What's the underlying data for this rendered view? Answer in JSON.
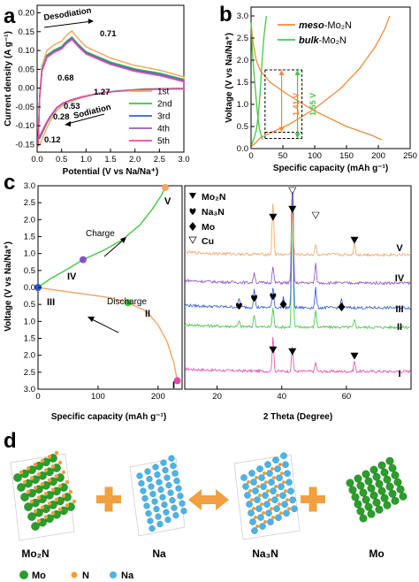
{
  "colors": {
    "s1": "#f4a460",
    "s2": "#3cc43c",
    "s3": "#3a5fcd",
    "s4": "#9b5fc0",
    "s5": "#e64fa8",
    "meso": "#f08a3c",
    "bulk": "#44c944",
    "purple": "#8a4fc8",
    "blue": "#2a56d9",
    "pink": "#e846b0",
    "mo": "#2a9d2a",
    "n": "#f39c34",
    "na": "#4db3e6",
    "arrow": "#f0a040"
  },
  "panels": {
    "a": "a",
    "b": "b",
    "c": "c",
    "d": "d"
  },
  "chart_data": [
    {
      "id": "a",
      "type": "line",
      "xlabel": "Potential (V vs Na/Na⁺)",
      "ylabel": "Current density (A g⁻¹)",
      "xlim": [
        0.0,
        3.0
      ],
      "ylim": [
        -0.17,
        0.22
      ],
      "x_ticks": [
        "0.0",
        "0.5",
        "1.0",
        "1.5",
        "2.0",
        "2.5",
        "3.0"
      ],
      "y_ticks": [
        "-0.15",
        "-0.10",
        "-0.05",
        "0.00",
        "0.05",
        "0.10",
        "0.15",
        "0.20"
      ],
      "legend": [
        "1st",
        "2nd",
        "3rd",
        "4th",
        "5th"
      ],
      "legend_position": "lower-right",
      "annotations": [
        "Desodiation",
        "0.71",
        "0.68",
        "0.53",
        "1.27",
        "0.28",
        "Sodiation",
        "0.12"
      ],
      "series": [
        {
          "name": "1st",
          "cycle": 1
        },
        {
          "name": "2nd",
          "cycle": 2
        },
        {
          "name": "3rd",
          "cycle": 3
        },
        {
          "name": "4th",
          "cycle": 4
        },
        {
          "name": "5th",
          "cycle": 5
        }
      ],
      "reduction_points": [
        [
          3.0,
          0.0
        ],
        [
          2.2,
          -0.002
        ],
        [
          1.6,
          -0.008
        ],
        [
          1.27,
          -0.014
        ],
        [
          0.9,
          -0.026
        ],
        [
          0.68,
          -0.036
        ],
        [
          0.53,
          -0.045
        ],
        [
          0.4,
          -0.06
        ],
        [
          0.28,
          -0.085
        ],
        [
          0.2,
          -0.105
        ],
        [
          0.12,
          -0.13
        ],
        [
          0.06,
          -0.15
        ],
        [
          0.02,
          -0.155
        ]
      ],
      "oxidation_points": [
        [
          0.02,
          -0.155
        ],
        [
          0.05,
          -0.02
        ],
        [
          0.1,
          0.06
        ],
        [
          0.2,
          0.1
        ],
        [
          0.35,
          0.115
        ],
        [
          0.5,
          0.125
        ],
        [
          0.6,
          0.14
        ],
        [
          0.71,
          0.152
        ],
        [
          0.85,
          0.13
        ],
        [
          1.0,
          0.11
        ],
        [
          1.5,
          0.08
        ],
        [
          2.0,
          0.06
        ],
        [
          2.5,
          0.048
        ],
        [
          3.0,
          0.03
        ]
      ],
      "series_offsets": [
        0.0,
        -0.004,
        -0.007,
        -0.009,
        -0.011
      ]
    },
    {
      "id": "b",
      "type": "line",
      "xlabel": "Specific capacity (mAh g⁻¹)",
      "ylabel": "Voltage (V vs Na/Na⁺)",
      "xlim": [
        0,
        250
      ],
      "ylim": [
        0.0,
        3.2
      ],
      "x_ticks": [
        "0",
        "50",
        "100",
        "150",
        "200",
        "250"
      ],
      "y_ticks": [
        "0.0",
        "0.5",
        "1.0",
        "1.5",
        "2.0",
        "2.5",
        "3.0"
      ],
      "legend": [
        "meso-Mo₂N",
        "bulk-Mo₂N"
      ],
      "legend_position": "top-right",
      "annotations": [
        "1.41 V",
        "1.55 V"
      ],
      "series": [
        {
          "name": "meso-Mo₂N",
          "role": "discharge",
          "points": [
            [
              0,
              2.85
            ],
            [
              3,
              2.4
            ],
            [
              8,
              2.0
            ],
            [
              15,
              1.75
            ],
            [
              30,
              1.5
            ],
            [
              60,
              1.2
            ],
            [
              100,
              0.85
            ],
            [
              150,
              0.5
            ],
            [
              190,
              0.3
            ],
            [
              205,
              0.2
            ]
          ]
        },
        {
          "name": "meso-Mo₂N",
          "role": "charge",
          "points": [
            [
              0,
              0.05
            ],
            [
              5,
              0.1
            ],
            [
              15,
              0.25
            ],
            [
              30,
              0.35
            ],
            [
              60,
              0.55
            ],
            [
              100,
              0.9
            ],
            [
              140,
              1.35
            ],
            [
              170,
              1.8
            ],
            [
              195,
              2.3
            ],
            [
              210,
              2.7
            ],
            [
              218,
              3.0
            ]
          ]
        },
        {
          "name": "bulk-Mo₂N",
          "role": "discharge",
          "points": [
            [
              0,
              2.85
            ],
            [
              2,
              2.2
            ],
            [
              4,
              1.8
            ],
            [
              7,
              1.3
            ],
            [
              10,
              0.8
            ],
            [
              13,
              0.45
            ],
            [
              16,
              0.3
            ],
            [
              18,
              0.2
            ]
          ]
        },
        {
          "name": "bulk-Mo₂N",
          "role": "charge",
          "points": [
            [
              0,
              0.05
            ],
            [
              5,
              0.25
            ],
            [
              8,
              0.4
            ],
            [
              11,
              0.7
            ],
            [
              14,
              1.2
            ],
            [
              17,
              1.9
            ],
            [
              20,
              2.5
            ],
            [
              24,
              3.0
            ]
          ]
        }
      ],
      "markers": {
        "x_left": 22,
        "x_right": 80,
        "y_mid_high": 1.78,
        "y_mid_low": 0.37,
        "y_bulk_low": 0.23
      }
    },
    {
      "id": "c-left",
      "type": "line",
      "xlabel": "Specific capacity (mAh g⁻¹)",
      "ylabel": "Voltage (V vs Na/Na⁺)",
      "xlim": [
        0,
        240
      ],
      "ylim": [
        3.0,
        -3.0
      ],
      "x_ticks": [
        "0",
        "100",
        "200"
      ],
      "y_ticks": [
        "3.0",
        "2.5",
        "2.0",
        "1.5",
        "1.0",
        "0.5",
        "0.0",
        "0.5",
        "1.0",
        "1.5",
        "2.0",
        "2.5",
        "3.0"
      ],
      "annotations": [
        "Charge",
        "Discharge",
        "I",
        "II",
        "III",
        "IV",
        "V"
      ],
      "series": [
        {
          "name": "Discharge",
          "points": [
            [
              0,
              0.0
            ],
            [
              30,
              0.08
            ],
            [
              80,
              0.2
            ],
            [
              120,
              0.3
            ],
            [
              150,
              0.45
            ],
            [
              180,
              0.7
            ],
            [
              200,
              1.1
            ],
            [
              215,
              1.6
            ],
            [
              226,
              2.2
            ],
            [
              232,
              2.75
            ]
          ]
        },
        {
          "name": "Charge",
          "points": [
            [
              0,
              0.0
            ],
            [
              20,
              -0.25
            ],
            [
              50,
              -0.55
            ],
            [
              75,
              -0.82
            ],
            [
              110,
              -1.1
            ],
            [
              140,
              -1.4
            ],
            [
              170,
              -1.85
            ],
            [
              190,
              -2.3
            ],
            [
              205,
              -2.7
            ],
            [
              212,
              -2.95
            ]
          ]
        }
      ],
      "points": [
        {
          "label": "I",
          "x": 232,
          "y": 2.75,
          "color": "#e846b0"
        },
        {
          "label": "II",
          "x": 150,
          "y": 0.45,
          "color": "#3cc43c"
        },
        {
          "label": "III",
          "x": 0,
          "y": 0.0,
          "color": "#2a56d9"
        },
        {
          "label": "IV",
          "x": 75,
          "y": -0.82,
          "color": "#8a4fc8"
        },
        {
          "label": "V",
          "x": 212,
          "y": -2.95,
          "color": "#f4a460"
        }
      ]
    },
    {
      "id": "c-right",
      "type": "line",
      "xlabel": "2 Theta (Degree)",
      "xlim": [
        10,
        80
      ],
      "x_ticks": [
        "20",
        "40",
        "60"
      ],
      "legend": [
        "Mo₂N",
        "Na₃N",
        "Mo",
        "Cu"
      ],
      "legend_position": "top-left",
      "annotations": [
        "I",
        "II",
        "III",
        "IV",
        "V"
      ],
      "series": [
        {
          "name": "I",
          "color": "#e846b0",
          "peaks": [
            [
              37.3,
              38
            ],
            [
              43.3,
              28
            ],
            [
              50.5,
              10
            ],
            [
              62.5,
              12
            ]
          ]
        },
        {
          "name": "II",
          "color": "#3cc43c",
          "peaks": [
            [
              26.8,
              6
            ],
            [
              31.5,
              14
            ],
            [
              37.3,
              22
            ],
            [
              43.3,
              150
            ],
            [
              50.5,
              20
            ],
            [
              62.5,
              8
            ]
          ]
        },
        {
          "name": "III",
          "color": "#2a56d9",
          "peaks": [
            [
              26.8,
              10
            ],
            [
              31.5,
              20
            ],
            [
              37.3,
              24
            ],
            [
              40.5,
              12
            ],
            [
              43.3,
              180
            ],
            [
              50.5,
              22
            ],
            [
              58.5,
              10
            ]
          ]
        },
        {
          "name": "IV",
          "color": "#8a4fc8",
          "peaks": [
            [
              31.5,
              12
            ],
            [
              37.3,
              18
            ],
            [
              43.3,
              160
            ],
            [
              50.5,
              22
            ]
          ]
        },
        {
          "name": "V",
          "color": "#f4a460",
          "peaks": [
            [
              37.3,
              60
            ],
            [
              43.3,
              50
            ],
            [
              50.5,
              12
            ],
            [
              62.5,
              14
            ]
          ]
        }
      ]
    }
  ],
  "panel_d": {
    "labels": [
      "Mo₂N",
      "Na",
      "Na₃N",
      "Mo"
    ],
    "legend": [
      "Mo",
      "N",
      "Na"
    ]
  }
}
